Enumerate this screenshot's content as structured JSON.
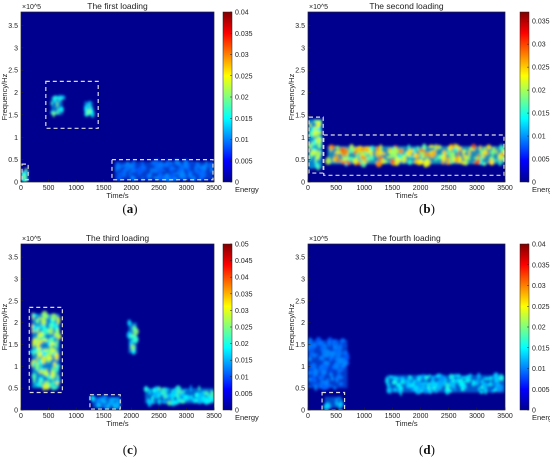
{
  "chart_data": [
    {
      "type": "heatmap",
      "title": "The first loading",
      "xlabel": "Time/s",
      "ylabel": "Frequency/Hz",
      "exponent": "×10^5",
      "xticks": [
        "0",
        "500",
        "1000",
        "1500",
        "2000",
        "2500",
        "3000",
        "3500"
      ],
      "yticks": [
        "0",
        "0.5",
        "1",
        "1.5",
        "2",
        "2.5",
        "3",
        "3.5"
      ],
      "xlim": [
        0,
        3500
      ],
      "ylim": [
        0,
        3.8
      ],
      "colorbar_ticks": [
        "0",
        "0.005",
        "0.01",
        "0.015",
        "0.02",
        "0.025",
        "0.03",
        "0.035",
        "0.04"
      ],
      "colorbar_label": "Energy",
      "colorbar_max": 0.04,
      "colormap": "jet",
      "caption": "a",
      "highlight_boxes": [
        {
          "x0": 450,
          "x1": 1400,
          "y0": 1.2,
          "y1": 2.25
        },
        {
          "x0": 0,
          "x1": 130,
          "y0": 0.05,
          "y1": 0.4
        },
        {
          "x0": 1650,
          "x1": 3500,
          "y0": 0.05,
          "y1": 0.5
        }
      ],
      "energy_regions": [
        {
          "t0": 0,
          "t1": 100,
          "f0": 0.0,
          "f1": 0.25,
          "level": 0.012
        },
        {
          "t0": 550,
          "t1": 750,
          "f0": 1.5,
          "f1": 1.9,
          "level": 0.012
        },
        {
          "t0": 1150,
          "t1": 1300,
          "f0": 1.5,
          "f1": 1.8,
          "level": 0.012
        },
        {
          "t0": 1700,
          "t1": 3500,
          "f0": 0.05,
          "f1": 0.45,
          "level": 0.003
        }
      ]
    },
    {
      "type": "heatmap",
      "title": "The second loading",
      "xlabel": "Time/s",
      "ylabel": "Frequency/Hz",
      "exponent": "×10^5",
      "xticks": [
        "0",
        "500",
        "1000",
        "1500",
        "2000",
        "2500",
        "3000",
        "3500"
      ],
      "yticks": [
        "0",
        "0.5",
        "1",
        "1.5",
        "2",
        "2.5",
        "3",
        "3.5"
      ],
      "xlim": [
        0,
        3500
      ],
      "ylim": [
        0,
        3.8
      ],
      "colorbar_ticks": [
        "0",
        "0.005",
        "0.01",
        "0.015",
        "0.02",
        "0.025",
        "0.03",
        "0.035"
      ],
      "colorbar_label": "Energy",
      "colorbar_max": 0.037,
      "colormap": "jet",
      "caption": "b",
      "highlight_boxes": [
        {
          "x0": 0,
          "x1": 270,
          "y0": 0.2,
          "y1": 1.45
        },
        {
          "x0": 280,
          "x1": 3500,
          "y0": 0.15,
          "y1": 1.05
        }
      ],
      "energy_regions": [
        {
          "t0": 0,
          "t1": 250,
          "f0": 0.3,
          "f1": 1.4,
          "level": 0.015
        },
        {
          "t0": 350,
          "t1": 3500,
          "f0": 0.4,
          "f1": 0.8,
          "level": 0.02
        }
      ]
    },
    {
      "type": "heatmap",
      "title": "The third loading",
      "xlabel": "Time/s",
      "ylabel": "Frequency/Hz",
      "exponent": "×10^5",
      "xticks": [
        "0",
        "500",
        "1000",
        "1500",
        "2000",
        "2500",
        "3000",
        "3500"
      ],
      "yticks": [
        "0",
        "0.5",
        "1",
        "1.5",
        "2",
        "2.5",
        "3",
        "3.5"
      ],
      "xlim": [
        0,
        3500
      ],
      "ylim": [
        0,
        3.8
      ],
      "colorbar_ticks": [
        "0",
        "0.005",
        "0.01",
        "0.015",
        "0.02",
        "0.025",
        "0.03",
        "0.035",
        "0.04",
        "0.045",
        "0.05"
      ],
      "colorbar_label": "Energy",
      "colorbar_max": 0.05,
      "colormap": "jet",
      "caption": "c",
      "highlight_boxes": [
        {
          "x0": 150,
          "x1": 750,
          "y0": 0.4,
          "y1": 2.35
        },
        {
          "x0": 1250,
          "x1": 1800,
          "y0": 0.02,
          "y1": 0.35
        }
      ],
      "energy_regions": [
        {
          "t0": 200,
          "t1": 700,
          "f0": 0.5,
          "f1": 2.2,
          "level": 0.02
        },
        {
          "t0": 1300,
          "t1": 1800,
          "f0": 0.05,
          "f1": 0.3,
          "level": 0.008
        },
        {
          "t0": 1950,
          "t1": 2100,
          "f0": 1.3,
          "f1": 2.0,
          "level": 0.015
        },
        {
          "t0": 2250,
          "t1": 3500,
          "f0": 0.15,
          "f1": 0.5,
          "level": 0.012
        }
      ]
    },
    {
      "type": "heatmap",
      "title": "The fourth loading",
      "xlabel": "Time/s",
      "ylabel": "Frequency/Hz",
      "exponent": "×10^5",
      "xticks": [
        "0",
        "500",
        "1000",
        "1500",
        "2000",
        "2500",
        "3000",
        "3500"
      ],
      "yticks": [
        "0",
        "0.5",
        "1",
        "1.5",
        "2",
        "2.5",
        "3",
        "3.5"
      ],
      "xlim": [
        0,
        3500
      ],
      "ylim": [
        0,
        3.8
      ],
      "colorbar_ticks": [
        "0",
        "0.005",
        "0.01",
        "0.015",
        "0.02",
        "0.025",
        "0.03",
        "0.035",
        "0.04"
      ],
      "colorbar_label": "Energy",
      "colorbar_max": 0.04,
      "colormap": "jet",
      "caption": "d",
      "highlight_boxes": [
        {
          "x0": 250,
          "x1": 650,
          "y0": 0.0,
          "y1": 0.4
        }
      ],
      "energy_regions": [
        {
          "t0": 0,
          "t1": 700,
          "f0": 0.5,
          "f1": 1.6,
          "level": 0.003
        },
        {
          "t0": 300,
          "t1": 600,
          "f0": 0.05,
          "f1": 0.3,
          "level": 0.006
        },
        {
          "t0": 1400,
          "t1": 3500,
          "f0": 0.4,
          "f1": 0.8,
          "level": 0.008
        }
      ]
    }
  ]
}
